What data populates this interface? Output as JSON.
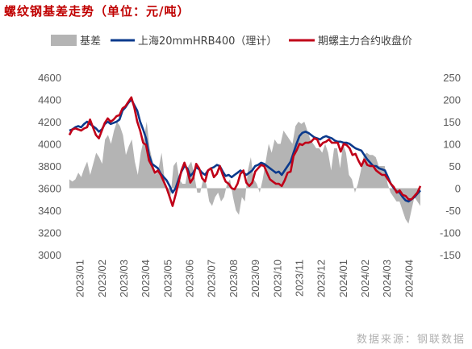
{
  "title": "螺纹钢基差走势（单位：元/吨）",
  "source": "数据来源：钢联数据",
  "colors": {
    "title": "#c00000",
    "basis": "#b4b4b4",
    "spot": "#0b3a8c",
    "futures": "#c00018"
  },
  "chart_data": {
    "type": "line",
    "title": "螺纹钢基差走势（单位：元/吨）",
    "legend_position": "top",
    "grid": false,
    "y_left": {
      "min": 3000,
      "max": 4600,
      "step": 200,
      "ticks": [
        "4600",
        "4400",
        "4200",
        "4000",
        "3800",
        "3600",
        "3400",
        "3200",
        "3000"
      ]
    },
    "y_right": {
      "min": -150,
      "max": 250,
      "step": 50,
      "ticks": [
        "250",
        "200",
        "150",
        "100",
        "50",
        "0",
        "-50",
        "-100",
        "-150"
      ]
    },
    "x_labels": [
      "2023/01",
      "2023/02",
      "2023/03",
      "2023/04",
      "2023/05",
      "2023/06",
      "2023/07",
      "2023/08",
      "2023/09",
      "2023/10",
      "2023/11",
      "2023/12",
      "2024/01",
      "2024/02",
      "2024/03",
      "2024/04"
    ],
    "series": [
      {
        "name": "基差",
        "type": "area",
        "axis": "right",
        "values": [
          20,
          15,
          20,
          35,
          25,
          45,
          60,
          30,
          55,
          80,
          70,
          55,
          110,
          120,
          100,
          130,
          150,
          140,
          120,
          75,
          95,
          110,
          60,
          30,
          80,
          110,
          150,
          90,
          60,
          30,
          45,
          80,
          20,
          -10,
          -20,
          50,
          60,
          20,
          10,
          10,
          50,
          60,
          30,
          -10,
          -10,
          20,
          10,
          -30,
          -40,
          -20,
          -10,
          -30,
          -20,
          10,
          20,
          -20,
          -50,
          -60,
          -20,
          -30,
          40,
          70,
          20,
          10,
          -10,
          20,
          60,
          100,
          80,
          110,
          100,
          100,
          130,
          120,
          110,
          100,
          140,
          150,
          145,
          150,
          130,
          110,
          100,
          90,
          90,
          80,
          100,
          80,
          40,
          90,
          90,
          45,
          100,
          80,
          30,
          20,
          -10,
          10,
          40,
          75,
          80,
          75,
          75,
          70,
          50,
          50,
          50,
          10,
          -10,
          -20,
          -30,
          -30,
          -50,
          -70,
          -80,
          -50,
          -20,
          -30,
          -40
        ]
      },
      {
        "name": "上海20mmHRB400（理计）",
        "axis": "left",
        "values": [
          4120,
          4130,
          4150,
          4160,
          4150,
          4180,
          4200,
          4180,
          4160,
          4140,
          4110,
          4130,
          4180,
          4200,
          4180,
          4190,
          4200,
          4220,
          4300,
          4330,
          4370,
          4400,
          4350,
          4300,
          4200,
          4130,
          4050,
          3900,
          3820,
          3800,
          3780,
          3730,
          3700,
          3670,
          3620,
          3560,
          3600,
          3680,
          3750,
          3800,
          3780,
          3710,
          3740,
          3790,
          3770,
          3740,
          3720,
          3760,
          3780,
          3790,
          3810,
          3800,
          3750,
          3710,
          3720,
          3700,
          3720,
          3740,
          3760,
          3740,
          3720,
          3740,
          3760,
          3800,
          3810,
          3830,
          3820,
          3800,
          3780,
          3760,
          3740,
          3750,
          3720,
          3760,
          3800,
          3840,
          3920,
          4000,
          4070,
          4100,
          4110,
          4100,
          4080,
          4060,
          4050,
          4040,
          4060,
          4070,
          4060,
          4050,
          4030,
          4020,
          4020,
          4010,
          4010,
          4000,
          3980,
          3960,
          3950,
          3940,
          3900,
          3860,
          3830,
          3800,
          3800,
          3780,
          3770,
          3760,
          3700,
          3640,
          3600,
          3570,
          3560,
          3520,
          3490,
          3480,
          3500,
          3520,
          3550,
          3580
        ]
      },
      {
        "name": "期螺主力合约收盘价",
        "axis": "left",
        "values": [
          4080,
          4130,
          4140,
          4130,
          4120,
          4140,
          4150,
          4220,
          4150,
          4080,
          4050,
          4120,
          4190,
          4230,
          4200,
          4220,
          4250,
          4260,
          4320,
          4340,
          4380,
          4420,
          4330,
          4200,
          4120,
          4010,
          3990,
          3850,
          3800,
          3740,
          3760,
          3720,
          3660,
          3600,
          3520,
          3440,
          3540,
          3650,
          3760,
          3830,
          3760,
          3650,
          3690,
          3820,
          3780,
          3690,
          3660,
          3760,
          3780,
          3700,
          3730,
          3800,
          3720,
          3660,
          3640,
          3600,
          3590,
          3640,
          3730,
          3760,
          3650,
          3620,
          3650,
          3750,
          3780,
          3810,
          3800,
          3740,
          3680,
          3660,
          3640,
          3640,
          3620,
          3670,
          3740,
          3750,
          3890,
          3940,
          4000,
          3990,
          4010,
          4010,
          4020,
          4050,
          4040,
          3980,
          4010,
          4020,
          4040,
          4010,
          4010,
          4010,
          3930,
          4000,
          3990,
          3960,
          3900,
          3910,
          3850,
          3800,
          3860,
          3810,
          3800,
          3800,
          3760,
          3740,
          3720,
          3720,
          3680,
          3640,
          3610,
          3560,
          3580,
          3540,
          3530,
          3500,
          3500,
          3530,
          3560,
          3620
        ]
      }
    ]
  }
}
